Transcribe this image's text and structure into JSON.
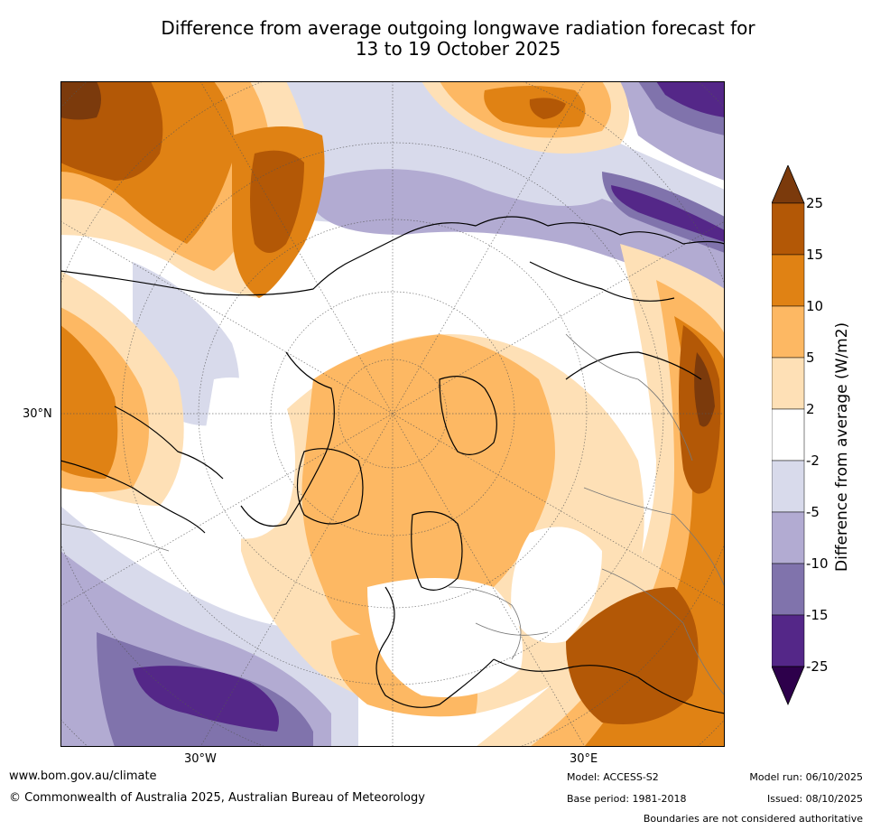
{
  "title": {
    "line1": "Difference from average outgoing longwave radiation forecast for",
    "line2": "13 to 19 October 2025"
  },
  "axis_labels": {
    "lat_30n": "30°N",
    "lon_30w": "30°W",
    "lon_30e": "30°E"
  },
  "colorbar": {
    "title": "Difference from average (W/m2)",
    "ticks": [
      "25",
      "15",
      "10",
      "5",
      "2",
      "-2",
      "-5",
      "-10",
      "-15",
      "-25"
    ],
    "colors": {
      "over": "#7b3a0c",
      "b15_25": "#b35806",
      "b10_15": "#e08214",
      "b5_10": "#fdb863",
      "b2_5": "#fee0b6",
      "neutral": "#ffffff",
      "m2_5": "#d8daeb",
      "m5_10": "#b2abd2",
      "m10_15": "#8073ac",
      "m15_25": "#542788",
      "under": "#2d004b"
    }
  },
  "footer": {
    "website": "www.bom.gov.au/climate",
    "copyright": "© Commonwealth of Australia 2025, Australian Bureau of Meteorology",
    "model": "Model: ACCESS-S2",
    "base_period": "Base period: 1981-2018",
    "model_run": "Model run: 06/10/2025",
    "issued": "Issued: 08/10/2025",
    "disclaimer": "Boundaries are not considered authoritative"
  }
}
